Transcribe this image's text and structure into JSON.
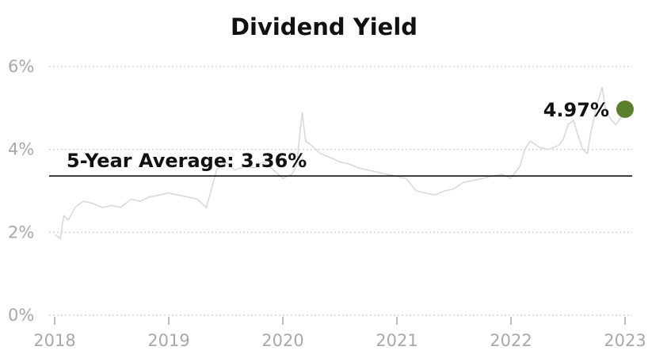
{
  "chart_data": {
    "type": "line",
    "title": "Dividend Yield",
    "xlabel": "",
    "ylabel": "",
    "ylim": [
      0,
      6
    ],
    "xlim": [
      2018.0,
      2023.0
    ],
    "y_ticks": [
      {
        "value": 0,
        "label": "0%"
      },
      {
        "value": 2,
        "label": "2%"
      },
      {
        "value": 4,
        "label": "4%"
      },
      {
        "value": 6,
        "label": "6%"
      }
    ],
    "x_ticks": [
      {
        "value": 2018,
        "label": "2018"
      },
      {
        "value": 2019,
        "label": "2019"
      },
      {
        "value": 2020,
        "label": "2020"
      },
      {
        "value": 2021,
        "label": "2021"
      },
      {
        "value": 2022,
        "label": "2022"
      },
      {
        "value": 2023,
        "label": "2023"
      }
    ],
    "grid": "horizontal-dotted",
    "series": [
      {
        "x": [
          2018.0,
          2018.05,
          2018.08,
          2018.12,
          2018.18,
          2018.25,
          2018.33,
          2018.42,
          2018.5,
          2018.58,
          2018.67,
          2018.75,
          2018.83,
          2018.92,
          2019.0,
          2019.08,
          2019.17,
          2019.25,
          2019.33,
          2019.42,
          2019.5,
          2019.58,
          2019.67,
          2019.75,
          2019.83,
          2019.92,
          2020.0,
          2020.08,
          2020.12,
          2020.17,
          2020.2,
          2020.25,
          2020.33,
          2020.42,
          2020.5,
          2020.58,
          2020.67,
          2020.75,
          2020.83,
          2020.92,
          2021.0,
          2021.08,
          2021.17,
          2021.25,
          2021.33,
          2021.42,
          2021.5,
          2021.58,
          2021.67,
          2021.75,
          2021.83,
          2021.92,
          2022.0,
          2022.08,
          2022.12,
          2022.17,
          2022.25,
          2022.33,
          2022.42,
          2022.46,
          2022.5,
          2022.55,
          2022.58,
          2022.63,
          2022.67,
          2022.7,
          2022.75,
          2022.8,
          2022.83,
          2022.88,
          2022.92,
          2022.96,
          2023.0
        ],
        "values": [
          1.95,
          1.85,
          2.4,
          2.3,
          2.6,
          2.75,
          2.7,
          2.6,
          2.65,
          2.6,
          2.8,
          2.75,
          2.85,
          2.9,
          2.95,
          2.9,
          2.85,
          2.8,
          2.6,
          3.5,
          3.7,
          3.5,
          3.6,
          3.55,
          3.7,
          3.5,
          3.3,
          3.4,
          3.6,
          4.9,
          4.2,
          4.1,
          3.9,
          3.8,
          3.7,
          3.65,
          3.55,
          3.5,
          3.45,
          3.4,
          3.35,
          3.3,
          3.0,
          2.95,
          2.9,
          3.0,
          3.05,
          3.2,
          3.25,
          3.3,
          3.35,
          3.4,
          3.3,
          3.6,
          4.0,
          4.2,
          4.05,
          4.0,
          4.1,
          4.25,
          4.6,
          4.7,
          4.4,
          4.0,
          3.9,
          4.4,
          5.05,
          5.5,
          4.95,
          4.7,
          4.6,
          4.75,
          4.97
        ],
        "color": "#d9d9d9"
      }
    ],
    "reference_line": {
      "value": 3.36,
      "label": "5-Year Average: 3.36%"
    },
    "end_point": {
      "x": 2023.0,
      "value": 4.97,
      "label": "4.97%",
      "color": "#5a7f2b"
    },
    "colors": {
      "line": "#d9d9d9",
      "marker": "#5a7f2b",
      "average": "#111111",
      "grid": "#cfcfcf",
      "tick_text": "#a8a8a8"
    }
  }
}
